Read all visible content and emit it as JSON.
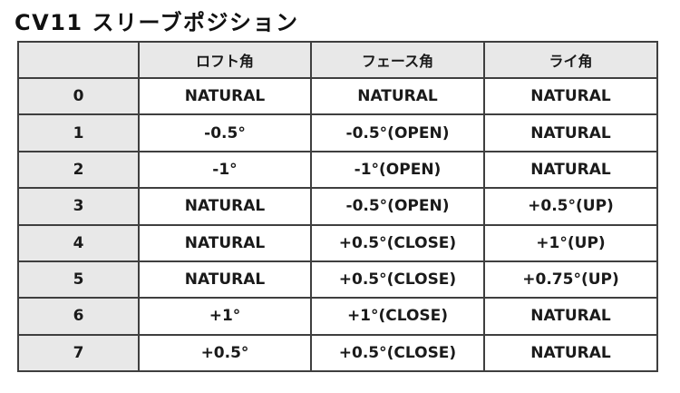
{
  "title": "CV11 スリーブポジション",
  "colors": {
    "header_fill": "#e8e8e8",
    "border": "#3f3f3f",
    "text": "#1a1a1a"
  },
  "table": {
    "headers": {
      "position": "",
      "loft": "ロフト角",
      "face": "フェース角",
      "lie": "ライ角"
    },
    "rows": [
      {
        "label": "0",
        "loft": "NATURAL",
        "face": "NATURAL",
        "lie": "NATURAL"
      },
      {
        "label": "1",
        "loft": "-0.5°",
        "face": "-0.5°(OPEN)",
        "lie": "NATURAL"
      },
      {
        "label": "2",
        "loft": "-1°",
        "face": "-1°(OPEN)",
        "lie": "NATURAL"
      },
      {
        "label": "3",
        "loft": "NATURAL",
        "face": "-0.5°(OPEN)",
        "lie": "+0.5°(UP)"
      },
      {
        "label": "4",
        "loft": "NATURAL",
        "face": "+0.5°(CLOSE)",
        "lie": "+1°(UP)"
      },
      {
        "label": "5",
        "loft": "NATURAL",
        "face": "+0.5°(CLOSE)",
        "lie": "+0.75°(UP)"
      },
      {
        "label": "6",
        "loft": "+1°",
        "face": "+1°(CLOSE)",
        "lie": "NATURAL"
      },
      {
        "label": "7",
        "loft": "+0.5°",
        "face": "+0.5°(CLOSE)",
        "lie": "NATURAL"
      }
    ]
  }
}
